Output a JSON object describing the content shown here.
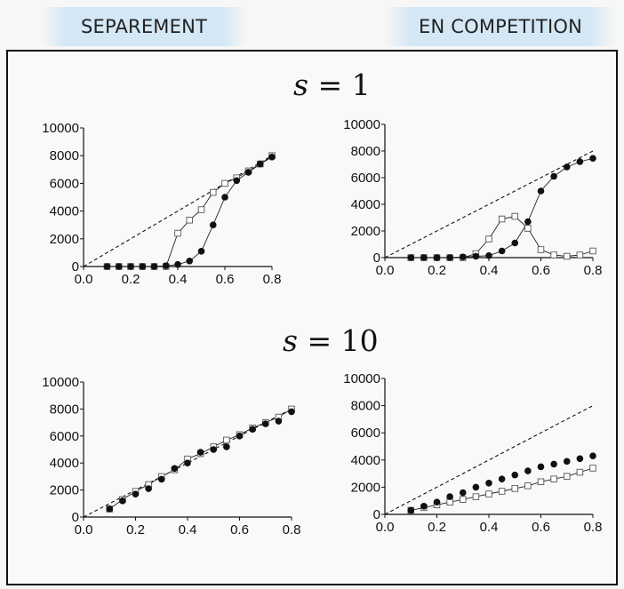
{
  "header": {
    "left_label": "SEPAREMENT",
    "right_label": "EN COMPETITION"
  },
  "rows": [
    {
      "parameter": "s",
      "equals": "=",
      "value": "1"
    },
    {
      "parameter": "s",
      "equals": "=",
      "value": "10"
    }
  ],
  "colors": {
    "header_band": "#d3e7f5",
    "filled_marker": "#111111",
    "open_marker": "#ffffff"
  },
  "chart_data": [
    {
      "id": "s1-separement",
      "type": "scatter",
      "xlim": [
        0,
        0.8
      ],
      "ylim": [
        0,
        10000
      ],
      "xticks": [
        "0.0",
        "0.2",
        "0.4",
        "0.6",
        "0.8"
      ],
      "yticks": [
        "0",
        "2000",
        "4000",
        "6000",
        "8000",
        "10000"
      ],
      "reference_line": {
        "style": "dashed",
        "from": [
          0,
          0
        ],
        "to": [
          0.8,
          8000
        ]
      },
      "series": [
        {
          "marker": "open-square",
          "connected": true,
          "points": [
            [
              0.1,
              0
            ],
            [
              0.15,
              0
            ],
            [
              0.2,
              0
            ],
            [
              0.25,
              0
            ],
            [
              0.3,
              0
            ],
            [
              0.35,
              0
            ],
            [
              0.4,
              2400
            ],
            [
              0.45,
              3350
            ],
            [
              0.5,
              4100
            ],
            [
              0.55,
              5350
            ],
            [
              0.6,
              6000
            ],
            [
              0.65,
              6400
            ],
            [
              0.7,
              6900
            ],
            [
              0.75,
              7400
            ],
            [
              0.8,
              8000
            ]
          ]
        },
        {
          "marker": "filled-circle",
          "connected": true,
          "points": [
            [
              0.1,
              0
            ],
            [
              0.15,
              0
            ],
            [
              0.2,
              0
            ],
            [
              0.25,
              0
            ],
            [
              0.3,
              0
            ],
            [
              0.35,
              50
            ],
            [
              0.4,
              150
            ],
            [
              0.45,
              400
            ],
            [
              0.5,
              1100
            ],
            [
              0.55,
              3000
            ],
            [
              0.6,
              5000
            ],
            [
              0.65,
              6200
            ],
            [
              0.7,
              6800
            ],
            [
              0.75,
              7400
            ],
            [
              0.8,
              7900
            ]
          ]
        }
      ]
    },
    {
      "id": "s1-competition",
      "type": "scatter",
      "xlim": [
        0,
        0.8
      ],
      "ylim": [
        0,
        10000
      ],
      "xticks": [
        "0.0",
        "0.2",
        "0.4",
        "0.6",
        "0.8"
      ],
      "yticks": [
        "0",
        "2000",
        "4000",
        "6000",
        "8000",
        "10000"
      ],
      "reference_line": {
        "style": "dashed",
        "from": [
          0,
          0
        ],
        "to": [
          0.8,
          8000
        ]
      },
      "series": [
        {
          "marker": "open-square",
          "connected": true,
          "points": [
            [
              0.1,
              0
            ],
            [
              0.15,
              0
            ],
            [
              0.2,
              0
            ],
            [
              0.25,
              0
            ],
            [
              0.3,
              0
            ],
            [
              0.35,
              300
            ],
            [
              0.4,
              1400
            ],
            [
              0.45,
              2900
            ],
            [
              0.5,
              3100
            ],
            [
              0.55,
              2200
            ],
            [
              0.6,
              600
            ],
            [
              0.65,
              200
            ],
            [
              0.7,
              100
            ],
            [
              0.75,
              200
            ],
            [
              0.8,
              500
            ]
          ]
        },
        {
          "marker": "filled-circle",
          "connected": true,
          "points": [
            [
              0.1,
              0
            ],
            [
              0.15,
              0
            ],
            [
              0.2,
              0
            ],
            [
              0.25,
              0
            ],
            [
              0.3,
              50
            ],
            [
              0.35,
              100
            ],
            [
              0.4,
              150
            ],
            [
              0.45,
              500
            ],
            [
              0.5,
              1100
            ],
            [
              0.55,
              2700
            ],
            [
              0.6,
              5000
            ],
            [
              0.65,
              6100
            ],
            [
              0.7,
              6800
            ],
            [
              0.75,
              7200
            ],
            [
              0.8,
              7450
            ]
          ]
        }
      ]
    },
    {
      "id": "s10-separement",
      "type": "scatter",
      "xlim": [
        0,
        0.8
      ],
      "ylim": [
        0,
        10000
      ],
      "xticks": [
        "0.0",
        "0.2",
        "0.4",
        "0.6",
        "0.8"
      ],
      "yticks": [
        "0",
        "2000",
        "4000",
        "6000",
        "8000",
        "10000"
      ],
      "reference_line": {
        "style": "dashed",
        "from": [
          0,
          0
        ],
        "to": [
          0.8,
          8000
        ]
      },
      "series": [
        {
          "marker": "open-square",
          "connected": true,
          "points": [
            [
              0.1,
              600
            ],
            [
              0.15,
              1300
            ],
            [
              0.2,
              1900
            ],
            [
              0.25,
              2400
            ],
            [
              0.3,
              3000
            ],
            [
              0.35,
              3500
            ],
            [
              0.4,
              4300
            ],
            [
              0.45,
              4700
            ],
            [
              0.5,
              5200
            ],
            [
              0.55,
              5700
            ],
            [
              0.6,
              6100
            ],
            [
              0.65,
              6600
            ],
            [
              0.7,
              7000
            ],
            [
              0.75,
              7400
            ],
            [
              0.8,
              8000
            ]
          ]
        },
        {
          "marker": "filled-circle",
          "connected": false,
          "points": [
            [
              0.1,
              600
            ],
            [
              0.15,
              1200
            ],
            [
              0.2,
              1700
            ],
            [
              0.25,
              2100
            ],
            [
              0.3,
              2800
            ],
            [
              0.35,
              3600
            ],
            [
              0.4,
              4000
            ],
            [
              0.45,
              4800
            ],
            [
              0.5,
              5000
            ],
            [
              0.55,
              5200
            ],
            [
              0.6,
              6000
            ],
            [
              0.65,
              6500
            ],
            [
              0.7,
              6900
            ],
            [
              0.75,
              7100
            ],
            [
              0.8,
              7800
            ]
          ]
        }
      ]
    },
    {
      "id": "s10-competition",
      "type": "scatter",
      "xlim": [
        0,
        0.8
      ],
      "ylim": [
        0,
        10000
      ],
      "xticks": [
        "0.0",
        "0.2",
        "0.4",
        "0.6",
        "0.8"
      ],
      "yticks": [
        "0",
        "2000",
        "4000",
        "6000",
        "8000",
        "10000"
      ],
      "reference_line": {
        "style": "dashed",
        "from": [
          0,
          0
        ],
        "to": [
          0.8,
          8000
        ]
      },
      "series": [
        {
          "marker": "open-square",
          "connected": true,
          "points": [
            [
              0.1,
              300
            ],
            [
              0.15,
              500
            ],
            [
              0.2,
              700
            ],
            [
              0.25,
              900
            ],
            [
              0.3,
              1100
            ],
            [
              0.35,
              1300
            ],
            [
              0.4,
              1500
            ],
            [
              0.45,
              1700
            ],
            [
              0.5,
              1900
            ],
            [
              0.55,
              2100
            ],
            [
              0.6,
              2400
            ],
            [
              0.65,
              2600
            ],
            [
              0.7,
              2800
            ],
            [
              0.75,
              3100
            ],
            [
              0.8,
              3400
            ]
          ]
        },
        {
          "marker": "filled-circle",
          "connected": false,
          "points": [
            [
              0.1,
              300
            ],
            [
              0.15,
              600
            ],
            [
              0.2,
              900
            ],
            [
              0.25,
              1300
            ],
            [
              0.3,
              1600
            ],
            [
              0.35,
              2000
            ],
            [
              0.4,
              2300
            ],
            [
              0.45,
              2600
            ],
            [
              0.5,
              2900
            ],
            [
              0.55,
              3200
            ],
            [
              0.6,
              3500
            ],
            [
              0.65,
              3700
            ],
            [
              0.7,
              3900
            ],
            [
              0.75,
              4100
            ],
            [
              0.8,
              4300
            ]
          ]
        }
      ]
    }
  ]
}
